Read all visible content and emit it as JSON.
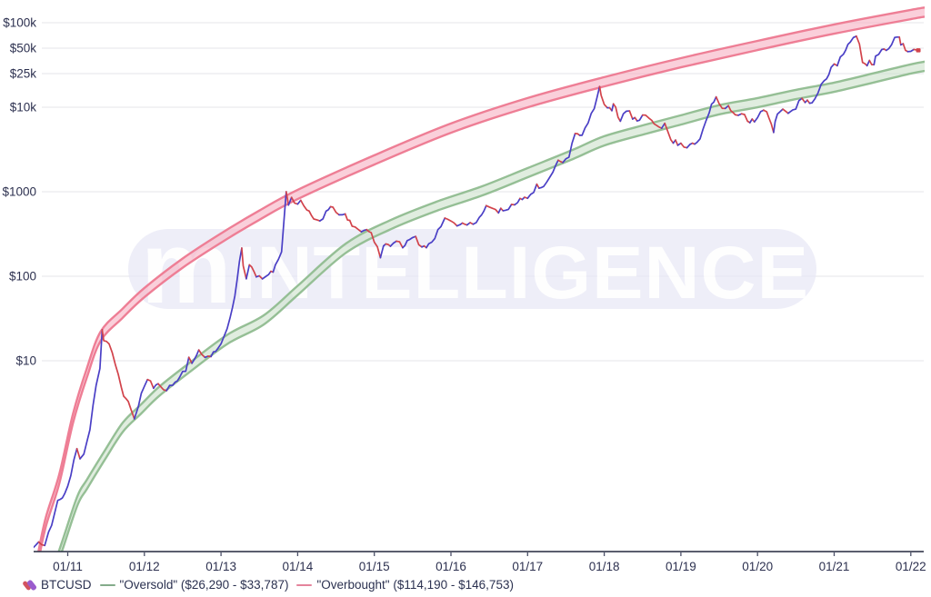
{
  "watermark": {
    "text": "INTELLIGENCE",
    "logo_glyph": "m",
    "bg_color": "#e6e6f5",
    "text_color": "#ffffff"
  },
  "legend": {
    "btcusd_label": "BTCUSD",
    "oversold_label": "\"Oversold\" ($26,290 - $33,787)",
    "overbought_label": "\"Overbought\" ($114,190 - $146,753)"
  },
  "colors": {
    "price_up": "#4a3fc6",
    "price_down": "#d2434b",
    "overbought_fill": "#f7b1c3",
    "overbought_stroke": "#ee7e95",
    "oversold_fill": "#cde2cb",
    "oversold_stroke": "#95bf95",
    "gridline": "#e9e9ee",
    "axis_line": "#23283f",
    "axis_text": "#2d3150"
  },
  "chart_data": {
    "type": "line",
    "y_scale": "log",
    "grid": "horizontal-only",
    "legend_position": "bottom-left",
    "y_ticks": [
      {
        "label": "$100k",
        "value": 100000
      },
      {
        "label": "$50k",
        "value": 50000
      },
      {
        "label": "$25k",
        "value": 25000
      },
      {
        "label": "$10k",
        "value": 10000
      },
      {
        "label": "$1000",
        "value": 1000
      },
      {
        "label": "$100",
        "value": 100
      },
      {
        "label": "$10",
        "value": 10
      }
    ],
    "x_ticks": [
      {
        "label": "01/11",
        "t": 2011
      },
      {
        "label": "01/12",
        "t": 2012
      },
      {
        "label": "01/13",
        "t": 2013
      },
      {
        "label": "01/14",
        "t": 2014
      },
      {
        "label": "01/15",
        "t": 2015
      },
      {
        "label": "01/16",
        "t": 2016
      },
      {
        "label": "01/17",
        "t": 2017
      },
      {
        "label": "01/18",
        "t": 2018
      },
      {
        "label": "01/19",
        "t": 2019
      },
      {
        "label": "01/20",
        "t": 2020
      },
      {
        "label": "01/21",
        "t": 2021
      },
      {
        "label": "01/22",
        "t": 2022
      }
    ],
    "x_range": [
      2010.55,
      2022.25
    ],
    "series": {
      "name": "BTCUSD",
      "points": [
        [
          2010.54,
          0.06
        ],
        [
          2010.62,
          0.07
        ],
        [
          2010.7,
          0.06
        ],
        [
          2010.75,
          0.09
        ],
        [
          2010.79,
          0.12
        ],
        [
          2010.87,
          0.22
        ],
        [
          2010.96,
          0.25
        ],
        [
          2011.04,
          0.42
        ],
        [
          2011.12,
          0.95
        ],
        [
          2011.16,
          0.75
        ],
        [
          2011.21,
          0.85
        ],
        [
          2011.29,
          1.6
        ],
        [
          2011.37,
          5.5
        ],
        [
          2011.42,
          8.2
        ],
        [
          2011.45,
          23.0
        ],
        [
          2011.47,
          17.5
        ],
        [
          2011.54,
          14.5
        ],
        [
          2011.62,
          9.0
        ],
        [
          2011.7,
          5.0
        ],
        [
          2011.79,
          3.0
        ],
        [
          2011.87,
          2.2
        ],
        [
          2011.92,
          2.8
        ],
        [
          2011.96,
          4.2
        ],
        [
          2012.04,
          5.9
        ],
        [
          2012.12,
          4.9
        ],
        [
          2012.21,
          4.9
        ],
        [
          2012.29,
          5.0
        ],
        [
          2012.37,
          5.1
        ],
        [
          2012.46,
          6.5
        ],
        [
          2012.54,
          8.0
        ],
        [
          2012.58,
          11.0
        ],
        [
          2012.62,
          10.2
        ],
        [
          2012.71,
          12.2
        ],
        [
          2012.79,
          10.9
        ],
        [
          2012.87,
          12.4
        ],
        [
          2012.96,
          13.4
        ],
        [
          2013.04,
          19.5
        ],
        [
          2013.12,
          31.0
        ],
        [
          2013.21,
          92.0
        ],
        [
          2013.27,
          230.0
        ],
        [
          2013.29,
          140.0
        ],
        [
          2013.33,
          98.0
        ],
        [
          2013.37,
          128.0
        ],
        [
          2013.46,
          97.0
        ],
        [
          2013.54,
          88.0
        ],
        [
          2013.62,
          108.0
        ],
        [
          2013.71,
          133.0
        ],
        [
          2013.79,
          200.0
        ],
        [
          2013.85,
          1130.0
        ],
        [
          2013.88,
          700.0
        ],
        [
          2013.92,
          850.0
        ],
        [
          2013.96,
          730.0
        ],
        [
          2014.04,
          810.0
        ],
        [
          2014.12,
          560.0
        ],
        [
          2014.21,
          450.0
        ],
        [
          2014.29,
          445.0
        ],
        [
          2014.37,
          590.0
        ],
        [
          2014.46,
          600.0
        ],
        [
          2014.54,
          580.0
        ],
        [
          2014.62,
          500.0
        ],
        [
          2014.71,
          385.0
        ],
        [
          2014.79,
          338.0
        ],
        [
          2014.87,
          375.0
        ],
        [
          2014.96,
          320.0
        ],
        [
          2015.04,
          218.0
        ],
        [
          2015.08,
          170.0
        ],
        [
          2015.12,
          250.0
        ],
        [
          2015.21,
          245.0
        ],
        [
          2015.29,
          236.0
        ],
        [
          2015.37,
          230.0
        ],
        [
          2015.46,
          262.0
        ],
        [
          2015.54,
          281.0
        ],
        [
          2015.62,
          230.0
        ],
        [
          2015.71,
          236.0
        ],
        [
          2015.79,
          314.0
        ],
        [
          2015.87,
          370.0
        ],
        [
          2015.92,
          460.0
        ],
        [
          2015.96,
          430.0
        ],
        [
          2016.04,
          368.0
        ],
        [
          2016.12,
          440.0
        ],
        [
          2016.21,
          416.0
        ],
        [
          2016.29,
          452.0
        ],
        [
          2016.37,
          530.0
        ],
        [
          2016.46,
          670.0
        ],
        [
          2016.54,
          660.0
        ],
        [
          2016.62,
          575.0
        ],
        [
          2016.71,
          610.0
        ],
        [
          2016.79,
          700.0
        ],
        [
          2016.87,
          745.0
        ],
        [
          2016.96,
          960.0
        ],
        [
          2017.04,
          920.0
        ],
        [
          2017.12,
          1190.0
        ],
        [
          2017.21,
          1080.0
        ],
        [
          2017.29,
          1350.0
        ],
        [
          2017.37,
          2300.0
        ],
        [
          2017.46,
          2450.0
        ],
        [
          2017.54,
          2870.0
        ],
        [
          2017.62,
          4700.0
        ],
        [
          2017.71,
          4340.0
        ],
        [
          2017.79,
          6450.0
        ],
        [
          2017.87,
          9900.0
        ],
        [
          2017.94,
          19500.0
        ],
        [
          2017.96,
          14100.0
        ],
        [
          2018.04,
          10200.0
        ],
        [
          2018.1,
          8200.0
        ],
        [
          2018.12,
          10400.0
        ],
        [
          2018.21,
          6930.0
        ],
        [
          2018.29,
          9240.0
        ],
        [
          2018.37,
          7500.0
        ],
        [
          2018.46,
          6400.0
        ],
        [
          2018.54,
          7750.0
        ],
        [
          2018.62,
          7030.0
        ],
        [
          2018.71,
          6630.0
        ],
        [
          2018.79,
          6300.0
        ],
        [
          2018.87,
          4020.0
        ],
        [
          2018.96,
          3740.0
        ],
        [
          2019.04,
          3460.0
        ],
        [
          2019.12,
          3850.0
        ],
        [
          2019.21,
          4100.0
        ],
        [
          2019.29,
          5350.0
        ],
        [
          2019.37,
          8580.0
        ],
        [
          2019.46,
          13000.0
        ],
        [
          2019.5,
          10800.0
        ],
        [
          2019.54,
          10080.0
        ],
        [
          2019.62,
          9630.0
        ],
        [
          2019.71,
          8290.0
        ],
        [
          2019.79,
          9150.0
        ],
        [
          2019.87,
          7550.0
        ],
        [
          2019.96,
          7200.0
        ],
        [
          2020.04,
          9350.0
        ],
        [
          2020.12,
          8550.0
        ],
        [
          2020.21,
          5030.0
        ],
        [
          2020.23,
          6440.0
        ],
        [
          2020.29,
          8660.0
        ],
        [
          2020.37,
          9450.0
        ],
        [
          2020.46,
          9140.0
        ],
        [
          2020.54,
          11350.0
        ],
        [
          2020.62,
          11650.0
        ],
        [
          2020.71,
          10780.0
        ],
        [
          2020.79,
          13800.0
        ],
        [
          2020.87,
          19700.0
        ],
        [
          2020.96,
          29000.0
        ],
        [
          2021.04,
          33100.0
        ],
        [
          2021.12,
          45200.0
        ],
        [
          2021.21,
          58900.0
        ],
        [
          2021.29,
          63500.0
        ],
        [
          2021.33,
          57800.0
        ],
        [
          2021.37,
          37300.0
        ],
        [
          2021.46,
          35000.0
        ],
        [
          2021.52,
          31500.0
        ],
        [
          2021.54,
          41600.0
        ],
        [
          2021.62,
          47200.0
        ],
        [
          2021.71,
          43800.0
        ],
        [
          2021.79,
          61300.0
        ],
        [
          2021.85,
          67500.0
        ],
        [
          2021.87,
          57000.0
        ],
        [
          2021.96,
          46200.0
        ],
        [
          2022.08,
          47500.0
        ]
      ]
    },
    "bands": [
      {
        "name": "Oversold",
        "range_low": 26290,
        "range_high": 33787,
        "half_ratio": 1.134,
        "fill": "#cde2cb",
        "stroke": "#95bf95",
        "center_points": [
          [
            2010.83,
            0.035
          ],
          [
            2010.95,
            0.074
          ],
          [
            2011.13,
            0.225
          ],
          [
            2011.25,
            0.345
          ],
          [
            2011.49,
            0.78
          ],
          [
            2011.72,
            1.64
          ],
          [
            2011.96,
            2.7
          ],
          [
            2012.2,
            4.4
          ],
          [
            2012.61,
            8.6
          ],
          [
            2013.09,
            18.1
          ],
          [
            2013.56,
            30.5
          ],
          [
            2014.0,
            68
          ],
          [
            2014.63,
            215
          ],
          [
            2015.22,
            410
          ],
          [
            2015.81,
            672
          ],
          [
            2016.41,
            1026
          ],
          [
            2017.0,
            1680
          ],
          [
            2017.59,
            2760
          ],
          [
            2018.0,
            4000
          ],
          [
            2018.55,
            5520
          ],
          [
            2019.0,
            7070
          ],
          [
            2019.49,
            9280
          ],
          [
            2020.0,
            11320
          ],
          [
            2020.5,
            14150
          ],
          [
            2021.0,
            17250
          ],
          [
            2021.51,
            22200
          ],
          [
            2022.0,
            28400
          ],
          [
            2022.2,
            30700
          ]
        ]
      },
      {
        "name": "Overbought",
        "range_low": 114190,
        "range_high": 146753,
        "half_ratio": 1.134,
        "fill": "#f7b1c3",
        "stroke": "#ee7e95",
        "center_points": [
          [
            2010.6,
            0.04
          ],
          [
            2010.71,
            0.12
          ],
          [
            2010.89,
            0.4
          ],
          [
            2011.07,
            2.1
          ],
          [
            2011.25,
            7.2
          ],
          [
            2011.43,
            19.5
          ],
          [
            2011.71,
            36
          ],
          [
            2012.0,
            64
          ],
          [
            2012.5,
            143
          ],
          [
            2013.0,
            283
          ],
          [
            2013.5,
            528
          ],
          [
            2014.0,
            929
          ],
          [
            2015.0,
            2380
          ],
          [
            2016.0,
            5660
          ],
          [
            2017.0,
            11320
          ],
          [
            2018.0,
            20000
          ],
          [
            2019.0,
            33600
          ],
          [
            2020.0,
            53800
          ],
          [
            2021.0,
            84100
          ],
          [
            2022.0,
            125000
          ],
          [
            2022.2,
            134000
          ]
        ]
      }
    ]
  }
}
